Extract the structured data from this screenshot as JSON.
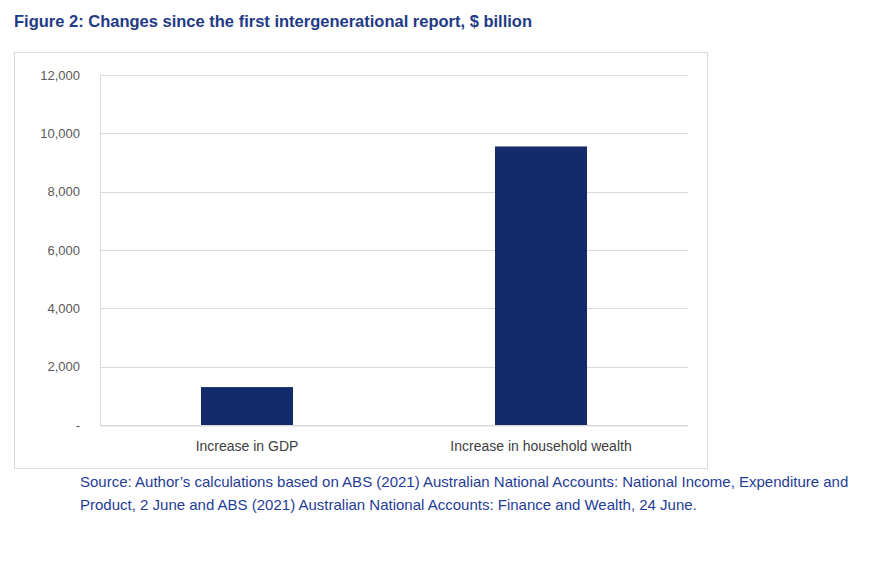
{
  "chart_data": {
    "type": "bar",
    "title": "Figure 2: Changes since the first intergenerational report, $ billion",
    "categories": [
      "Increase in GDP",
      "Increase in household wealth"
    ],
    "values": [
      1300,
      9550
    ],
    "color": "#132a6b",
    "ylim": [
      0,
      12000
    ],
    "yticks": [
      {
        "value": 0,
        "label": "-"
      },
      {
        "value": 2000,
        "label": "2,000"
      },
      {
        "value": 4000,
        "label": "4,000"
      },
      {
        "value": 6000,
        "label": "6,000"
      },
      {
        "value": 8000,
        "label": "8,000"
      },
      {
        "value": 10000,
        "label": "10,000"
      },
      {
        "value": 12000,
        "label": "12,000"
      }
    ],
    "grid": true,
    "source": "Source: Author’s calculations based on ABS (2021) Australian National Accounts: National Income, Expenditure and Product, 2 June and ABS (2021) Australian National Accounts: Finance and Wealth, 24 June."
  }
}
